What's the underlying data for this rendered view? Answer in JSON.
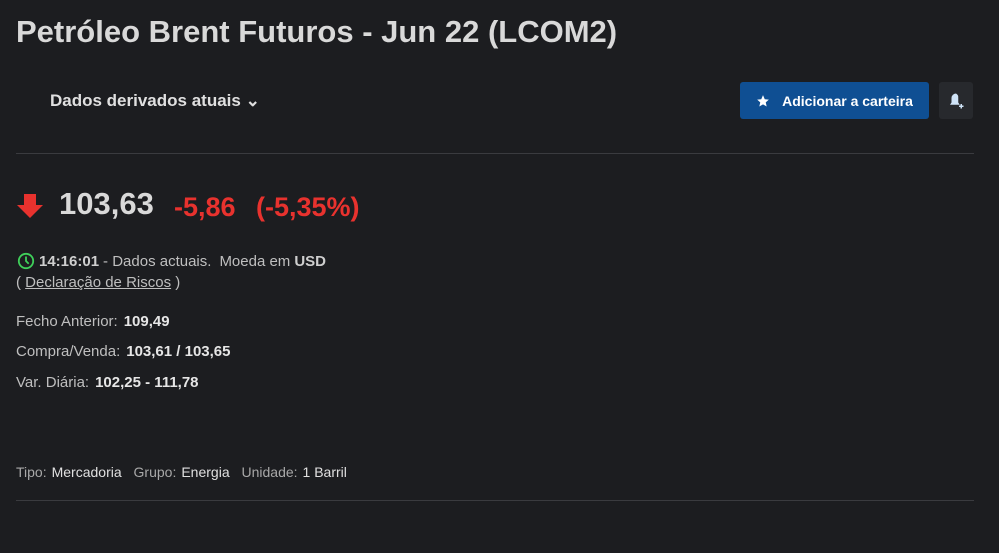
{
  "title": "Petróleo Brent Futuros - Jun 22 (LCOM2)",
  "dropdown": "Dados derivados atuais",
  "add_button": "Adicionar a carteira",
  "icons": {
    "add": "star-icon",
    "alert": "bell-plus-icon",
    "direction": "arrow-down-icon",
    "time": "clock-icon"
  },
  "colors": {
    "negative": "#e8322e",
    "button": "#0f4f93",
    "clock": "#3fd05a"
  },
  "quote": {
    "price": "103,63",
    "change": "-5,86",
    "change_pct": "(-5,35%)"
  },
  "status": {
    "time": "14:16:01",
    "text": "- Dados actuais.",
    "currency_label": "Moeda em",
    "currency": "USD",
    "risk_open": "(",
    "risk_link": "Declaração de Riscos",
    "risk_close": ")"
  },
  "stats": [
    {
      "label": "Fecho Anterior:",
      "value": "109,49"
    },
    {
      "label": "Compra/Venda:",
      "value": "103,61 / 103,65"
    },
    {
      "label": "Var. Diária:",
      "value": "102,25 - 111,78"
    }
  ],
  "meta": [
    {
      "label": "Tipo:",
      "value": "Mercadoria"
    },
    {
      "label": "Grupo:",
      "value": "Energia"
    },
    {
      "label": "Unidade:",
      "value": "1 Barril"
    }
  ]
}
